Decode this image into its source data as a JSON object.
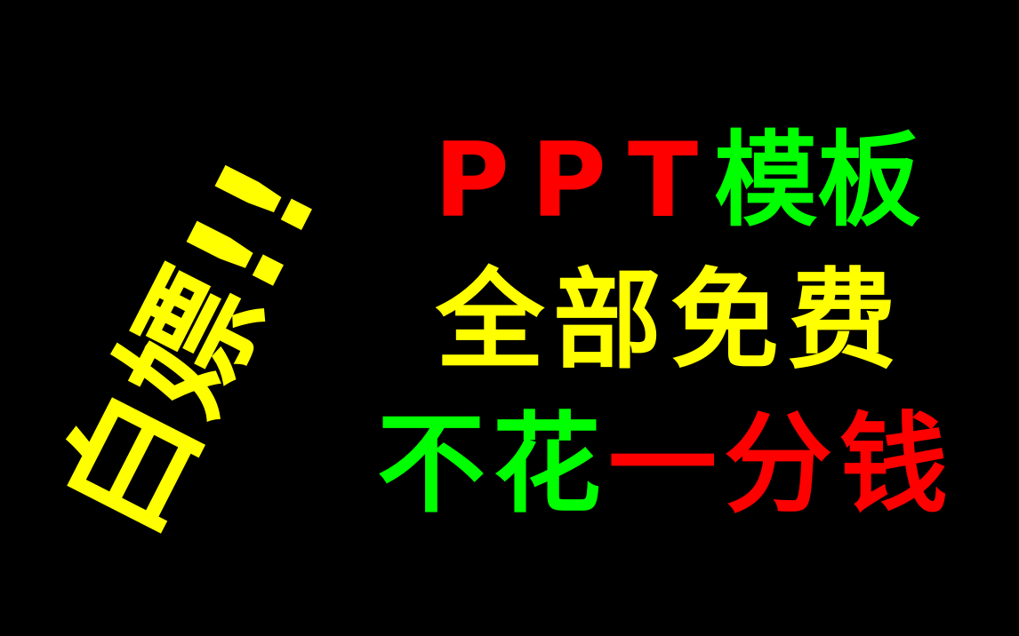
{
  "theme": {
    "background": "#000000",
    "yellow": "#ffff00",
    "red": "#ff0000",
    "green": "#00ff00"
  },
  "tilted_text": "白嫖!!",
  "line1": {
    "part1": "PPT",
    "part2": "模板"
  },
  "line2": {
    "text": "全部免费"
  },
  "line3": {
    "part1": "不花",
    "part2": "一分钱"
  }
}
